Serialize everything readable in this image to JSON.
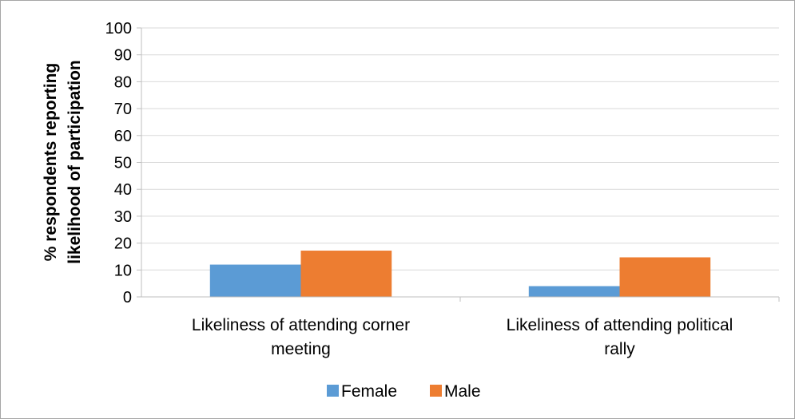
{
  "chart_data": {
    "type": "bar",
    "title": "",
    "xlabel": "",
    "ylabel_lines": [
      "% respondents reporting",
      "likelihood of participation"
    ],
    "categories": [
      [
        "Likeliness of attending corner",
        "meeting"
      ],
      [
        "Likeliness of attending political",
        "rally"
      ]
    ],
    "series": [
      {
        "name": "Female",
        "color": "#5b9bd5",
        "values": [
          12,
          4
        ]
      },
      {
        "name": "Male",
        "color": "#ed7d31",
        "values": [
          17.2,
          14.7
        ]
      }
    ],
    "ylim": [
      0,
      100
    ],
    "yticks": [
      0,
      10,
      20,
      30,
      40,
      50,
      60,
      70,
      80,
      90,
      100
    ],
    "grid": true,
    "legend": "bottom"
  }
}
